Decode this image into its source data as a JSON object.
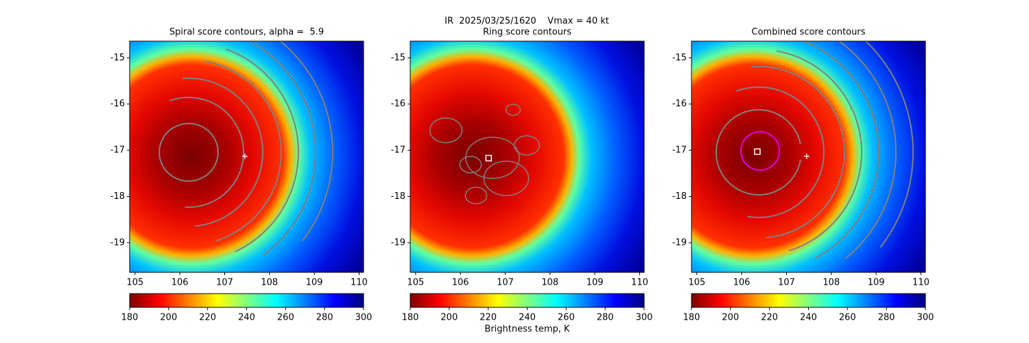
{
  "title": "IR  2025/03/25/1620    Vmax = 40 kt",
  "chart_data": [
    {
      "type": "heatmap",
      "title": "Spiral score contours, alpha =  5.9",
      "xlim": [
        104.88,
        110.1
      ],
      "ylim": [
        -19.64,
        -14.64
      ],
      "xticks": [
        105,
        106,
        107,
        108,
        109,
        110
      ],
      "yticks": [
        -15,
        -16,
        -17,
        -18,
        -19
      ],
      "colorbar": {
        "lim": [
          180,
          300
        ],
        "ticks": [
          180,
          200,
          220,
          240,
          260,
          280,
          300
        ]
      },
      "contours": "spiral",
      "markers": [
        {
          "x": 107.45,
          "y": -17.13,
          "symbol": "plus",
          "color": "#ffffff"
        }
      ]
    },
    {
      "type": "heatmap",
      "title": "Ring score contours",
      "xlim": [
        104.88,
        110.1
      ],
      "ylim": [
        -19.64,
        -14.64
      ],
      "xticks": [
        105,
        106,
        107,
        108,
        109,
        110
      ],
      "yticks": [
        -15,
        -16,
        -17,
        -18,
        -19
      ],
      "colorbar": {
        "lim": [
          180,
          300
        ],
        "ticks": [
          180,
          200,
          220,
          240,
          260,
          280,
          300
        ],
        "label": "Brightness temp, K"
      },
      "contours": "ring",
      "markers": [
        {
          "x": 106.63,
          "y": -17.17,
          "symbol": "square",
          "color": "#ffffff"
        }
      ]
    },
    {
      "type": "heatmap",
      "title": "Combined score contours",
      "xlim": [
        104.88,
        110.1
      ],
      "ylim": [
        -19.64,
        -14.64
      ],
      "xticks": [
        105,
        106,
        107,
        108,
        109,
        110
      ],
      "yticks": [
        -15,
        -16,
        -17,
        -18,
        -19
      ],
      "colorbar": {
        "lim": [
          180,
          300
        ],
        "ticks": [
          180,
          200,
          220,
          240,
          260,
          280,
          300
        ]
      },
      "contours": "combined",
      "markers": [
        {
          "x": 106.35,
          "y": -17.03,
          "symbol": "square",
          "color": "#ffffff"
        },
        {
          "x": 107.45,
          "y": -17.13,
          "symbol": "plus",
          "color": "#ffffff"
        }
      ]
    }
  ]
}
